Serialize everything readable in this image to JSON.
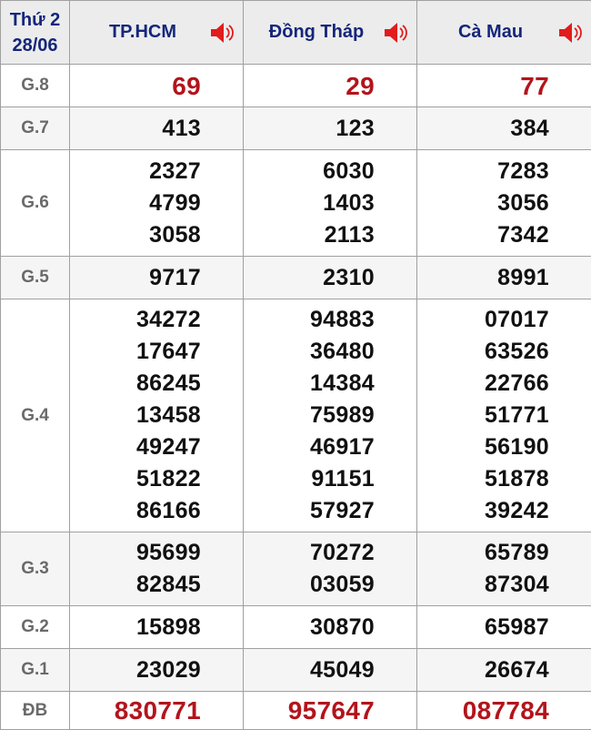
{
  "header": {
    "day": "Thứ 2",
    "date": "28/06",
    "provinces": [
      "TP.HCM",
      "Đồng Tháp",
      "Cà Mau"
    ],
    "speaker_icon": "speaker-icon"
  },
  "rows": [
    {
      "label": "G.8",
      "values": [
        [
          "69"
        ],
        [
          "29"
        ],
        [
          "77"
        ]
      ],
      "highlight": true
    },
    {
      "label": "G.7",
      "values": [
        [
          "413"
        ],
        [
          "123"
        ],
        [
          "384"
        ]
      ]
    },
    {
      "label": "G.6",
      "values": [
        [
          "2327",
          "4799",
          "3058"
        ],
        [
          "6030",
          "1403",
          "2113"
        ],
        [
          "7283",
          "3056",
          "7342"
        ]
      ]
    },
    {
      "label": "G.5",
      "values": [
        [
          "9717"
        ],
        [
          "2310"
        ],
        [
          "8991"
        ]
      ]
    },
    {
      "label": "G.4",
      "values": [
        [
          "34272",
          "17647",
          "86245",
          "13458",
          "49247",
          "51822",
          "86166"
        ],
        [
          "94883",
          "36480",
          "14384",
          "75989",
          "46917",
          "91151",
          "57927"
        ],
        [
          "07017",
          "63526",
          "22766",
          "51771",
          "56190",
          "51878",
          "39242"
        ]
      ]
    },
    {
      "label": "G.3",
      "values": [
        [
          "95699",
          "82845"
        ],
        [
          "70272",
          "03059"
        ],
        [
          "65789",
          "87304"
        ]
      ]
    },
    {
      "label": "G.2",
      "values": [
        [
          "15898"
        ],
        [
          "30870"
        ],
        [
          "65987"
        ]
      ]
    },
    {
      "label": "G.1",
      "values": [
        [
          "23029"
        ],
        [
          "45049"
        ],
        [
          "26674"
        ]
      ]
    },
    {
      "label": "ĐB",
      "values": [
        [
          "830771"
        ],
        [
          "957647"
        ],
        [
          "087784"
        ]
      ],
      "highlight": true
    }
  ],
  "colors": {
    "header_text": "#14267a",
    "highlight": "#b3141b",
    "label": "#6a6a6a",
    "speaker": "#e21b1b"
  }
}
